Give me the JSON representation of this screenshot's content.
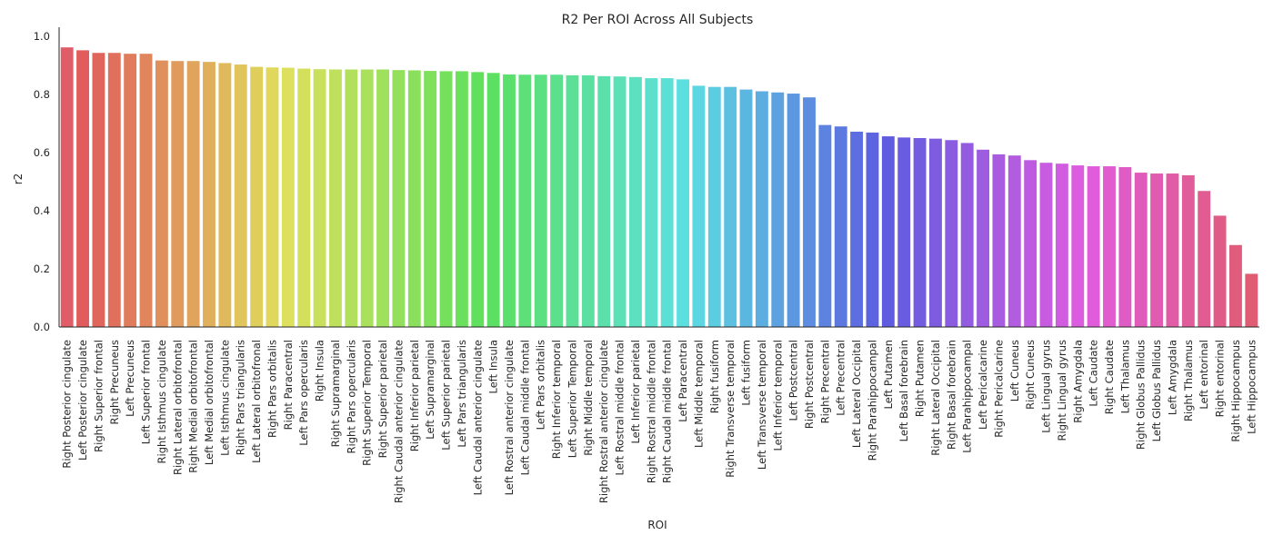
{
  "chart_data": {
    "type": "bar",
    "title": "R2 Per ROI Across All Subjects",
    "xlabel": "ROI",
    "ylabel": "r2",
    "ylim": [
      0,
      1.0
    ],
    "yticks": [
      "0.0",
      "0.2",
      "0.4",
      "0.6",
      "0.8",
      "1.0"
    ],
    "grid": false,
    "legend": "none",
    "categories": [
      "Right Posterior cingulate",
      "Left Posterior cingulate",
      "Right Superior frontal",
      "Right Precuneus",
      "Left Precuneus",
      "Left Superior frontal",
      "Right Isthmus cingulate",
      "Right Lateral orbitofrontal",
      "Right Medial orbitofrontal",
      "Left Medial orbitofrontal",
      "Left Isthmus cingulate",
      "Right Pars triangularis",
      "Left Lateral orbitofronal",
      "Right Pars orbitalis",
      "Right Paracentral",
      "Left Pars opercularis",
      "Right Insula",
      "Right Supramarginal",
      "Right Pars opercularis",
      "Right Superior Temporal",
      "Right Superior parietal",
      "Right Caudal anterior cingulate",
      "Right Inferior parietal",
      "Left Supramarginal",
      "Left Superior parietal",
      "Left Pars triangularis",
      "Left Caudal anterior cingulate",
      "Left Insula",
      "Left Rostral anterior cingulate",
      "Left Caudal middle frontal",
      "Left Pars orbitalis",
      "Right Inferior temporal",
      "Left Superior Temporal",
      "Right Middle temporal",
      "Right Rostral anterior cingulate",
      "Left Rostral middle frontal",
      "Left Inferior parietal",
      "Right Rostral middle frontal",
      "Right Caudal middle frontal",
      "Left Paracentral",
      "Left Middle temporal",
      "Right fusiform",
      "Right Transverse temporal",
      "Left fusiform",
      "Left Transverse temporal",
      "Left Inferior temporal",
      "Left Postcentral",
      "Right Postcentral",
      "Right Precentral",
      "Left Precentral",
      "Left Lateral Occipital",
      "Right Parahippocampal",
      "Left Putamen",
      "Left Basal forebrain",
      "Right Putamen",
      "Right Lateral Occipital",
      "Right Basal forebrain",
      "Left Parahippocampal",
      "Left Pericalcarine",
      "Right Pericalcarine",
      "Left Cuneus",
      "Right Cuneus",
      "Left Lingual gyrus",
      "Right Lingual gyrus",
      "Right Amygdala",
      "Left Caudate",
      "Right Caudate",
      "Left Thalamus",
      "Right Globus Pallidus",
      "Left Globus Pallidus",
      "Left Amygdala",
      "Right Thalamus",
      "Left entorinal",
      "Right entorinal",
      "Right Hippocampus",
      "Left Hippocampus"
    ],
    "values": [
      0.962,
      0.952,
      0.943,
      0.943,
      0.94,
      0.94,
      0.917,
      0.915,
      0.915,
      0.912,
      0.908,
      0.903,
      0.895,
      0.893,
      0.892,
      0.889,
      0.887,
      0.886,
      0.886,
      0.886,
      0.886,
      0.884,
      0.883,
      0.881,
      0.88,
      0.88,
      0.877,
      0.874,
      0.869,
      0.868,
      0.868,
      0.868,
      0.866,
      0.866,
      0.863,
      0.862,
      0.86,
      0.856,
      0.856,
      0.852,
      0.83,
      0.826,
      0.826,
      0.817,
      0.811,
      0.807,
      0.803,
      0.79,
      0.695,
      0.69,
      0.672,
      0.669,
      0.656,
      0.652,
      0.65,
      0.648,
      0.643,
      0.633,
      0.61,
      0.594,
      0.59,
      0.574,
      0.565,
      0.562,
      0.556,
      0.553,
      0.553,
      0.55,
      0.531,
      0.528,
      0.528,
      0.522,
      0.468,
      0.383,
      0.282,
      0.183
    ]
  }
}
